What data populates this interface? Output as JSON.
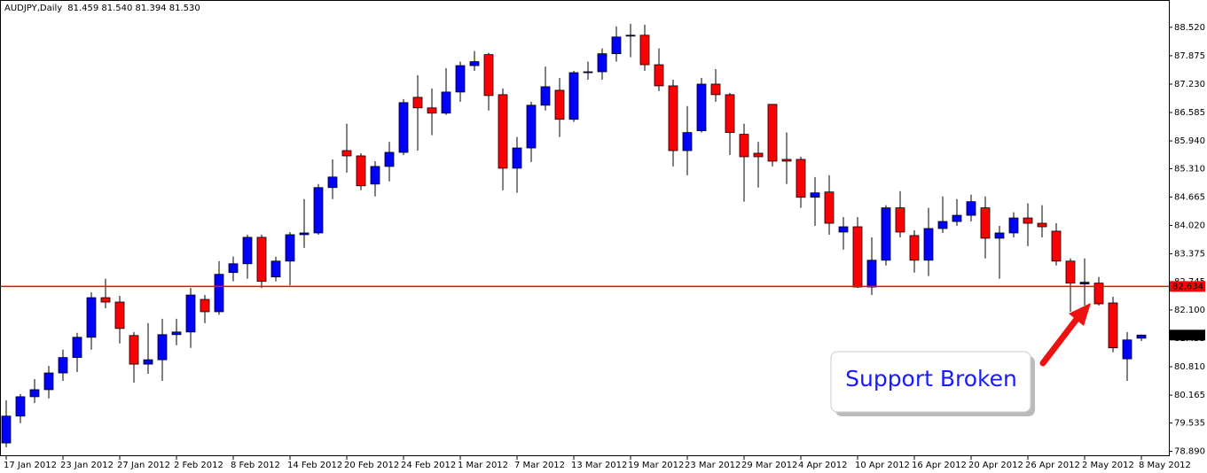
{
  "chart_data": {
    "type": "candlestick",
    "title": "AUDJPY,Daily",
    "ohlc_label": "81.459 81.540 81.394 81.530",
    "annotation": "Support Broken",
    "up_color": "#0000ff",
    "down_color": "#ff0000",
    "categories": [
      "17 Jan 2012",
      null,
      null,
      null,
      "23 Jan 2012",
      null,
      null,
      null,
      "27 Jan 2012",
      null,
      null,
      null,
      "2 Feb 2012",
      null,
      null,
      null,
      "8 Feb 2012",
      null,
      null,
      null,
      "14 Feb 2012",
      null,
      null,
      null,
      "20 Feb 2012",
      null,
      null,
      null,
      "24 Feb 2012",
      null,
      null,
      null,
      "1 Mar 2012",
      null,
      null,
      null,
      "7 Mar 2012",
      null,
      null,
      null,
      "13 Mar 2012",
      null,
      null,
      null,
      "19 Mar 2012",
      null,
      null,
      null,
      "23 Mar 2012",
      null,
      null,
      null,
      "29 Mar 2012",
      null,
      null,
      null,
      "4 Apr 2012",
      null,
      null,
      null,
      "10 Apr 2012",
      null,
      null,
      null,
      "16 Apr 2012",
      null,
      null,
      null,
      "20 Apr 2012",
      null,
      null,
      null,
      "26 Apr 2012",
      null,
      null,
      null,
      "2 May 2012",
      null,
      null,
      null,
      "8 May 2012"
    ],
    "open": [
      79.08,
      79.69,
      80.13,
      80.29,
      80.67,
      81.02,
      81.48,
      82.38,
      82.28,
      81.52,
      80.87,
      80.97,
      81.54,
      81.6,
      82.34,
      82.06,
      82.95,
      83.15,
      83.75,
      82.85,
      83.21,
      83.81,
      83.85,
      84.88,
      85.72,
      85.6,
      84.96,
      85.36,
      85.68,
      86.93,
      86.69,
      86.57,
      87.05,
      87.65,
      87.9,
      86.99,
      85.32,
      85.78,
      86.75,
      87.09,
      86.43,
      87.49,
      87.51,
      87.92,
      88.32,
      88.34,
      87.67,
      87.19,
      85.72,
      86.17,
      87.23,
      86.99,
      86.09,
      85.66,
      86.77,
      85.52,
      85.52,
      84.66,
      84.78,
      83.87,
      83.99,
      82.62,
      83.23,
      84.42,
      83.79,
      83.23,
      83.95,
      84.11,
      84.25,
      84.42,
      83.73,
      83.85,
      84.19,
      84.07,
      83.89,
      83.21,
      82.69,
      82.71,
      82.26,
      80.99,
      81.459
    ],
    "high": [
      80.05,
      80.19,
      80.53,
      80.83,
      81.2,
      81.58,
      82.5,
      82.81,
      82.42,
      81.6,
      81.8,
      81.9,
      81.9,
      82.6,
      82.44,
      83.21,
      83.31,
      83.81,
      83.81,
      83.31,
      83.87,
      84.62,
      84.96,
      85.52,
      86.33,
      85.66,
      85.48,
      85.92,
      86.89,
      87.43,
      87.13,
      87.59,
      87.74,
      87.98,
      87.94,
      87.13,
      86.03,
      86.83,
      87.63,
      87.37,
      87.53,
      87.74,
      88.04,
      88.54,
      88.6,
      88.58,
      88.04,
      87.33,
      86.73,
      87.37,
      87.57,
      87.03,
      86.33,
      85.92,
      86.77,
      86.13,
      85.58,
      85.12,
      85.16,
      84.21,
      84.21,
      83.75,
      84.48,
      84.8,
      83.91,
      84.42,
      84.68,
      84.62,
      84.72,
      84.68,
      84.01,
      84.32,
      84.52,
      84.48,
      84.07,
      83.27,
      83.27,
      82.85,
      82.4,
      81.6,
      81.54
    ],
    "low": [
      78.98,
      79.53,
      79.99,
      80.09,
      80.49,
      80.69,
      81.2,
      82.14,
      81.34,
      80.45,
      80.65,
      80.49,
      81.3,
      81.24,
      81.8,
      81.99,
      82.75,
      82.81,
      82.6,
      82.75,
      82.66,
      83.51,
      83.81,
      84.62,
      85.22,
      84.82,
      84.68,
      85.02,
      85.62,
      85.72,
      86.07,
      86.53,
      86.83,
      87.53,
      86.63,
      84.82,
      84.76,
      85.46,
      86.63,
      86.03,
      86.37,
      87.33,
      87.33,
      87.74,
      87.84,
      87.53,
      87.07,
      85.36,
      85.16,
      86.13,
      86.83,
      85.62,
      84.56,
      84.88,
      85.36,
      84.96,
      84.42,
      84.01,
      83.81,
      83.47,
      82.6,
      82.44,
      83.11,
      83.75,
      82.95,
      82.87,
      83.85,
      84.01,
      84.11,
      83.27,
      82.81,
      83.75,
      83.55,
      83.75,
      83.11,
      82.06,
      82.2,
      82.2,
      81.14,
      80.49,
      81.394
    ],
    "close": [
      79.69,
      80.13,
      80.29,
      80.67,
      81.02,
      81.48,
      82.38,
      82.28,
      81.68,
      80.87,
      80.97,
      81.54,
      81.6,
      82.44,
      82.06,
      82.91,
      83.15,
      83.75,
      82.75,
      83.21,
      83.81,
      83.85,
      84.88,
      85.12,
      85.6,
      84.92,
      85.36,
      85.68,
      86.81,
      86.69,
      86.57,
      87.05,
      87.65,
      87.74,
      86.97,
      85.32,
      85.78,
      86.75,
      87.17,
      86.43,
      87.49,
      87.51,
      87.92,
      88.3,
      88.34,
      87.67,
      87.19,
      85.72,
      86.13,
      87.23,
      86.99,
      86.13,
      85.58,
      85.58,
      85.48,
      85.48,
      84.66,
      84.76,
      84.07,
      83.99,
      82.62,
      83.23,
      84.42,
      83.87,
      83.23,
      83.95,
      84.11,
      84.25,
      84.56,
      83.73,
      83.85,
      84.19,
      84.07,
      83.99,
      83.21,
      82.71,
      82.73,
      82.24,
      81.24,
      81.42,
      81.53
    ],
    "ylim": [
      78.78,
      89.14
    ],
    "yticks": [
      {
        "value": 88.52,
        "label": "88.520"
      },
      {
        "value": 87.875,
        "label": "87.875"
      },
      {
        "value": 87.23,
        "label": "87.230"
      },
      {
        "value": 86.585,
        "label": "86.585"
      },
      {
        "value": 85.94,
        "label": "85.940"
      },
      {
        "value": 85.31,
        "label": "85.310"
      },
      {
        "value": 84.665,
        "label": "84.665"
      },
      {
        "value": 84.02,
        "label": "84.020"
      },
      {
        "value": 83.375,
        "label": "83.375"
      },
      {
        "value": 82.745,
        "label": "82.745"
      },
      {
        "value": 82.1,
        "label": "82.100"
      },
      {
        "value": 81.455,
        "label": "81.455"
      },
      {
        "value": 80.81,
        "label": "80.810"
      },
      {
        "value": 80.165,
        "label": "80.165"
      },
      {
        "value": 79.535,
        "label": "79.535"
      },
      {
        "value": 78.89,
        "label": "78.890"
      }
    ],
    "support_line": {
      "value": 82.634,
      "label": "82.634",
      "color": "#ff0000"
    },
    "last_price": {
      "value": 81.53,
      "label": "81.530"
    }
  }
}
